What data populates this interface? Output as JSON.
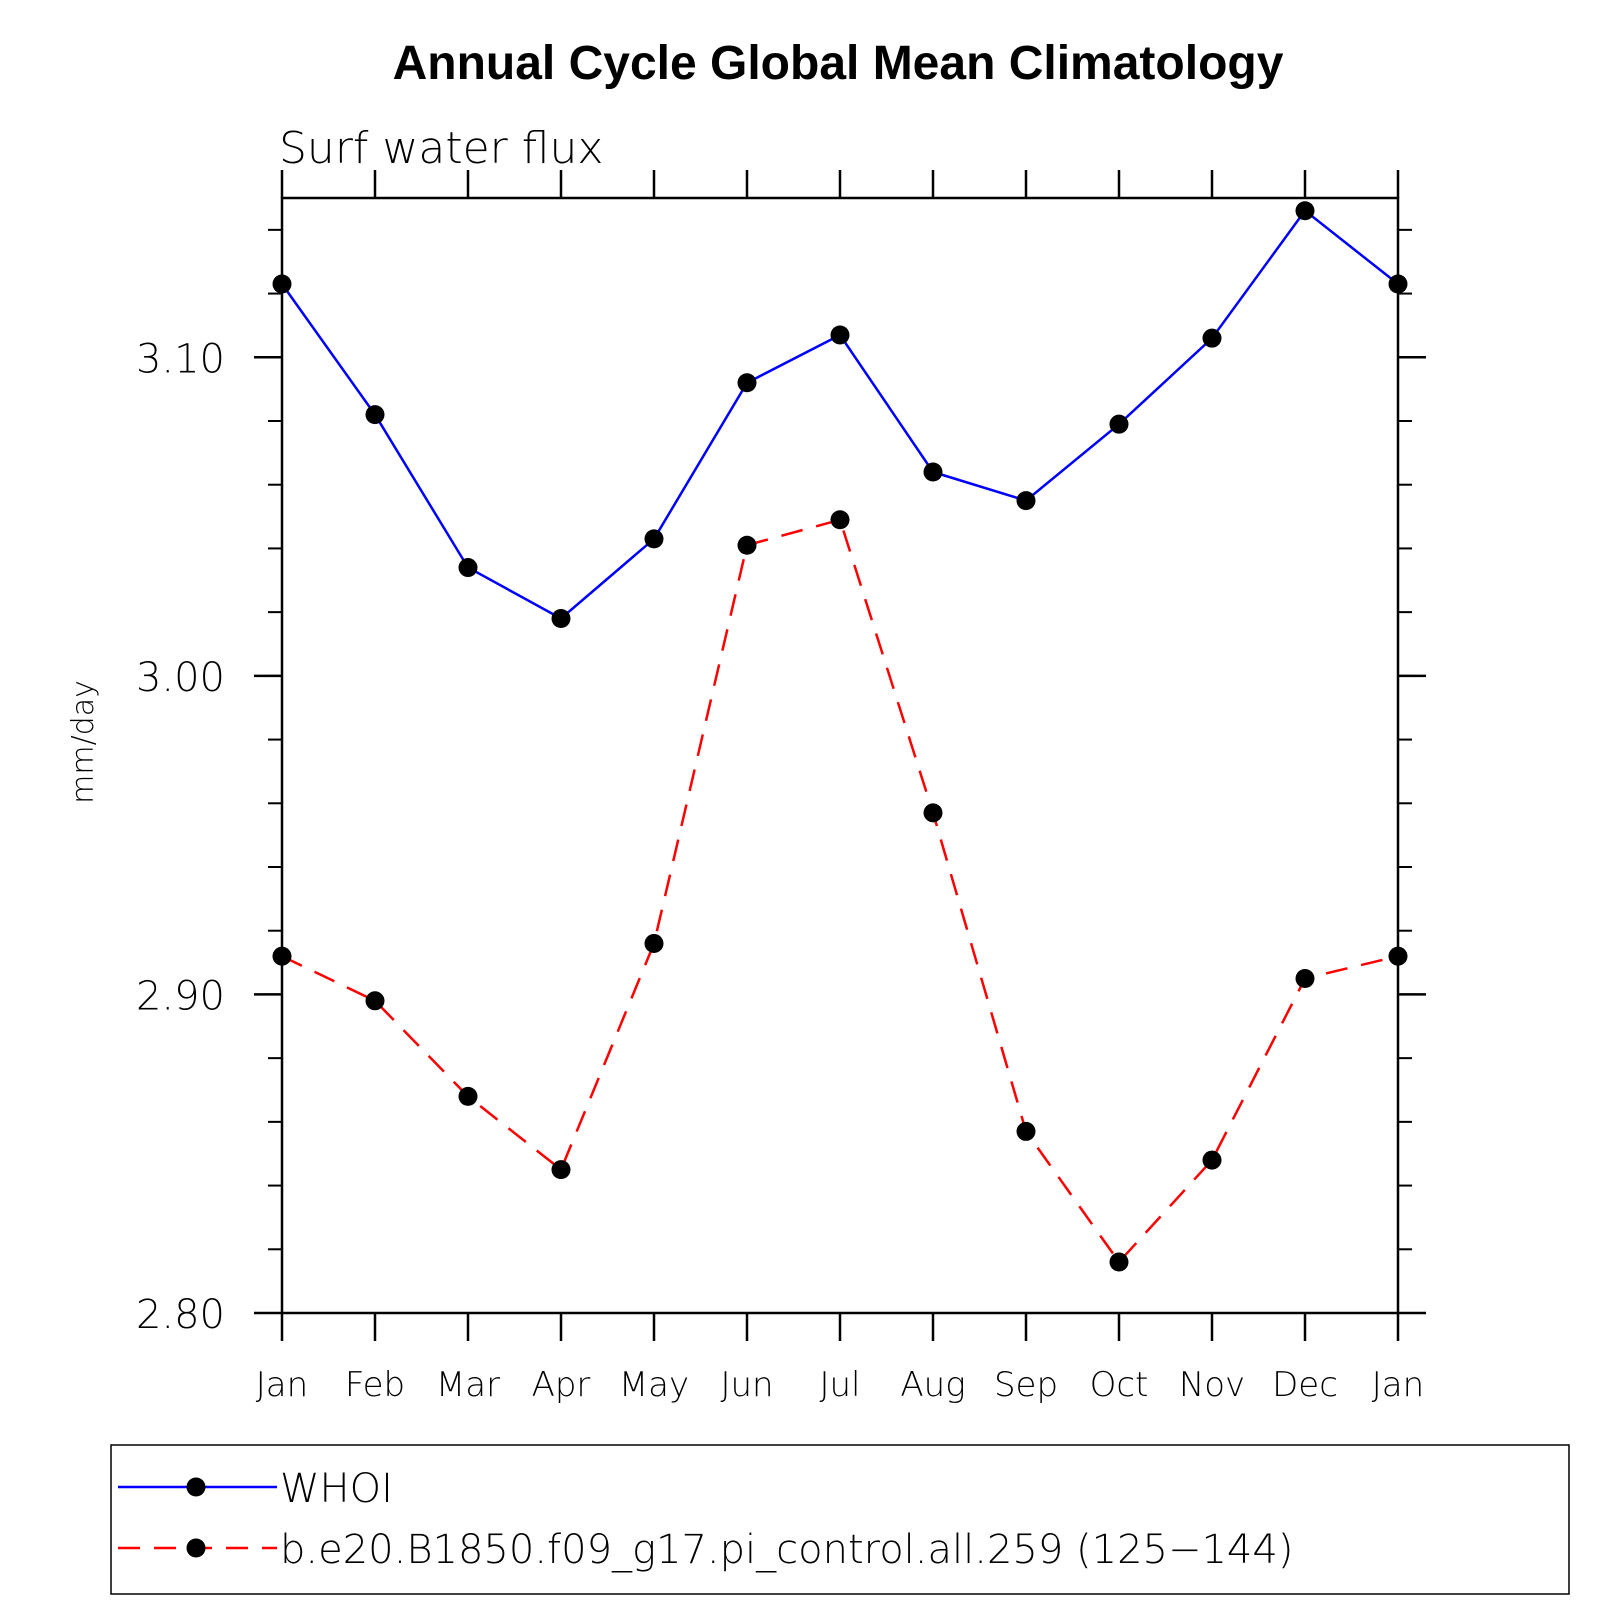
{
  "chart_data": {
    "type": "line",
    "title": "Annual Cycle Global Mean Climatology",
    "subtitle": "Surf water flux",
    "xlabel": "",
    "ylabel": "mm/day",
    "categories": [
      "Jan",
      "Feb",
      "Mar",
      "Apr",
      "May",
      "Jun",
      "Jul",
      "Aug",
      "Sep",
      "Oct",
      "Nov",
      "Dec",
      "Jan"
    ],
    "ylim": [
      2.8,
      3.15
    ],
    "yticks": [
      "2.80",
      "2.90",
      "3.00",
      "3.10"
    ],
    "grid": false,
    "legend_position": "bottom",
    "series": [
      {
        "name": "WHOI",
        "color": "#0000ff",
        "dash": "solid",
        "marker": "filled-circle",
        "values": [
          3.123,
          3.082,
          3.034,
          3.018,
          3.043,
          3.092,
          3.107,
          3.064,
          3.055,
          3.079,
          3.106,
          3.146,
          3.123
        ]
      },
      {
        "name": "b.e20.B1850.f09_g17.pi_control.all.259 (125−144)",
        "color": "#ff0000",
        "dash": "dashed",
        "marker": "filled-circle",
        "values": [
          2.912,
          2.898,
          2.868,
          2.845,
          2.916,
          3.041,
          3.049,
          2.957,
          2.857,
          2.816,
          2.848,
          2.905,
          2.912
        ]
      }
    ]
  }
}
